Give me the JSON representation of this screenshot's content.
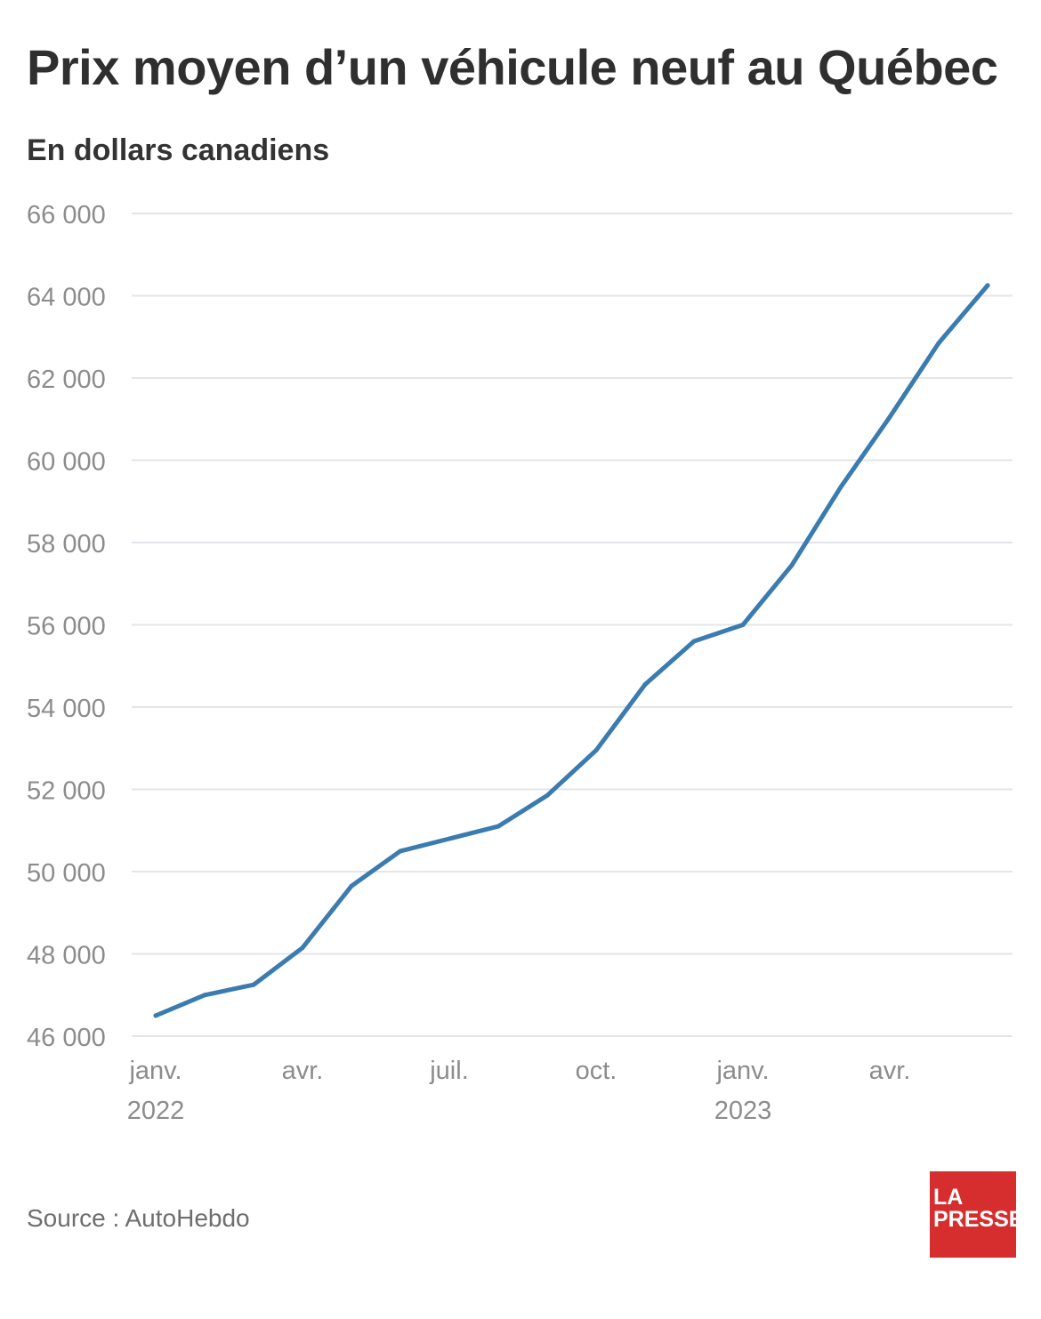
{
  "colors": {
    "line": "#3a7bb0",
    "grid": "#e4e5ea",
    "tick_text": "#8c8c8c",
    "logo_bg": "#d62e2e"
  },
  "header": {
    "title": "Prix moyen d’un véhicule neuf au Québec",
    "subtitle": "En dollars canadiens"
  },
  "footer": {
    "source": "Source : AutoHebdo",
    "logo_line1": "LA",
    "logo_line2": "PRESSE"
  },
  "chart_data": {
    "type": "line",
    "title": "Prix moyen d’un véhicule neuf au Québec",
    "subtitle": "En dollars canadiens",
    "xlabel": "",
    "ylabel": "",
    "ylim": [
      46000,
      66000
    ],
    "yticks": [
      46000,
      48000,
      50000,
      52000,
      54000,
      56000,
      58000,
      60000,
      62000,
      64000,
      66000
    ],
    "ytick_labels": [
      "46 000",
      "48 000",
      "50 000",
      "52 000",
      "54 000",
      "56 000",
      "58 000",
      "60 000",
      "62 000",
      "64 000",
      "66 000"
    ],
    "x": [
      "2022-01",
      "2022-02",
      "2022-03",
      "2022-04",
      "2022-05",
      "2022-06",
      "2022-07",
      "2022-08",
      "2022-09",
      "2022-10",
      "2022-11",
      "2022-12",
      "2023-01",
      "2023-02",
      "2023-03",
      "2023-04",
      "2023-05",
      "2023-06"
    ],
    "xticks": [
      {
        "x": "2022-01",
        "line1": "janv.",
        "line2": "2022"
      },
      {
        "x": "2022-04",
        "line1": "avr.",
        "line2": ""
      },
      {
        "x": "2022-07",
        "line1": "juil.",
        "line2": ""
      },
      {
        "x": "2022-10",
        "line1": "oct.",
        "line2": ""
      },
      {
        "x": "2023-01",
        "line1": "janv.",
        "line2": "2023"
      },
      {
        "x": "2023-04",
        "line1": "avr.",
        "line2": ""
      }
    ],
    "series": [
      {
        "values": [
          46500,
          47000,
          47250,
          48150,
          49650,
          50500,
          50800,
          51100,
          51850,
          52950,
          54550,
          55600,
          56000,
          57450,
          59350,
          61050,
          62850,
          64250
        ]
      }
    ],
    "grid": true,
    "legend": "none"
  }
}
